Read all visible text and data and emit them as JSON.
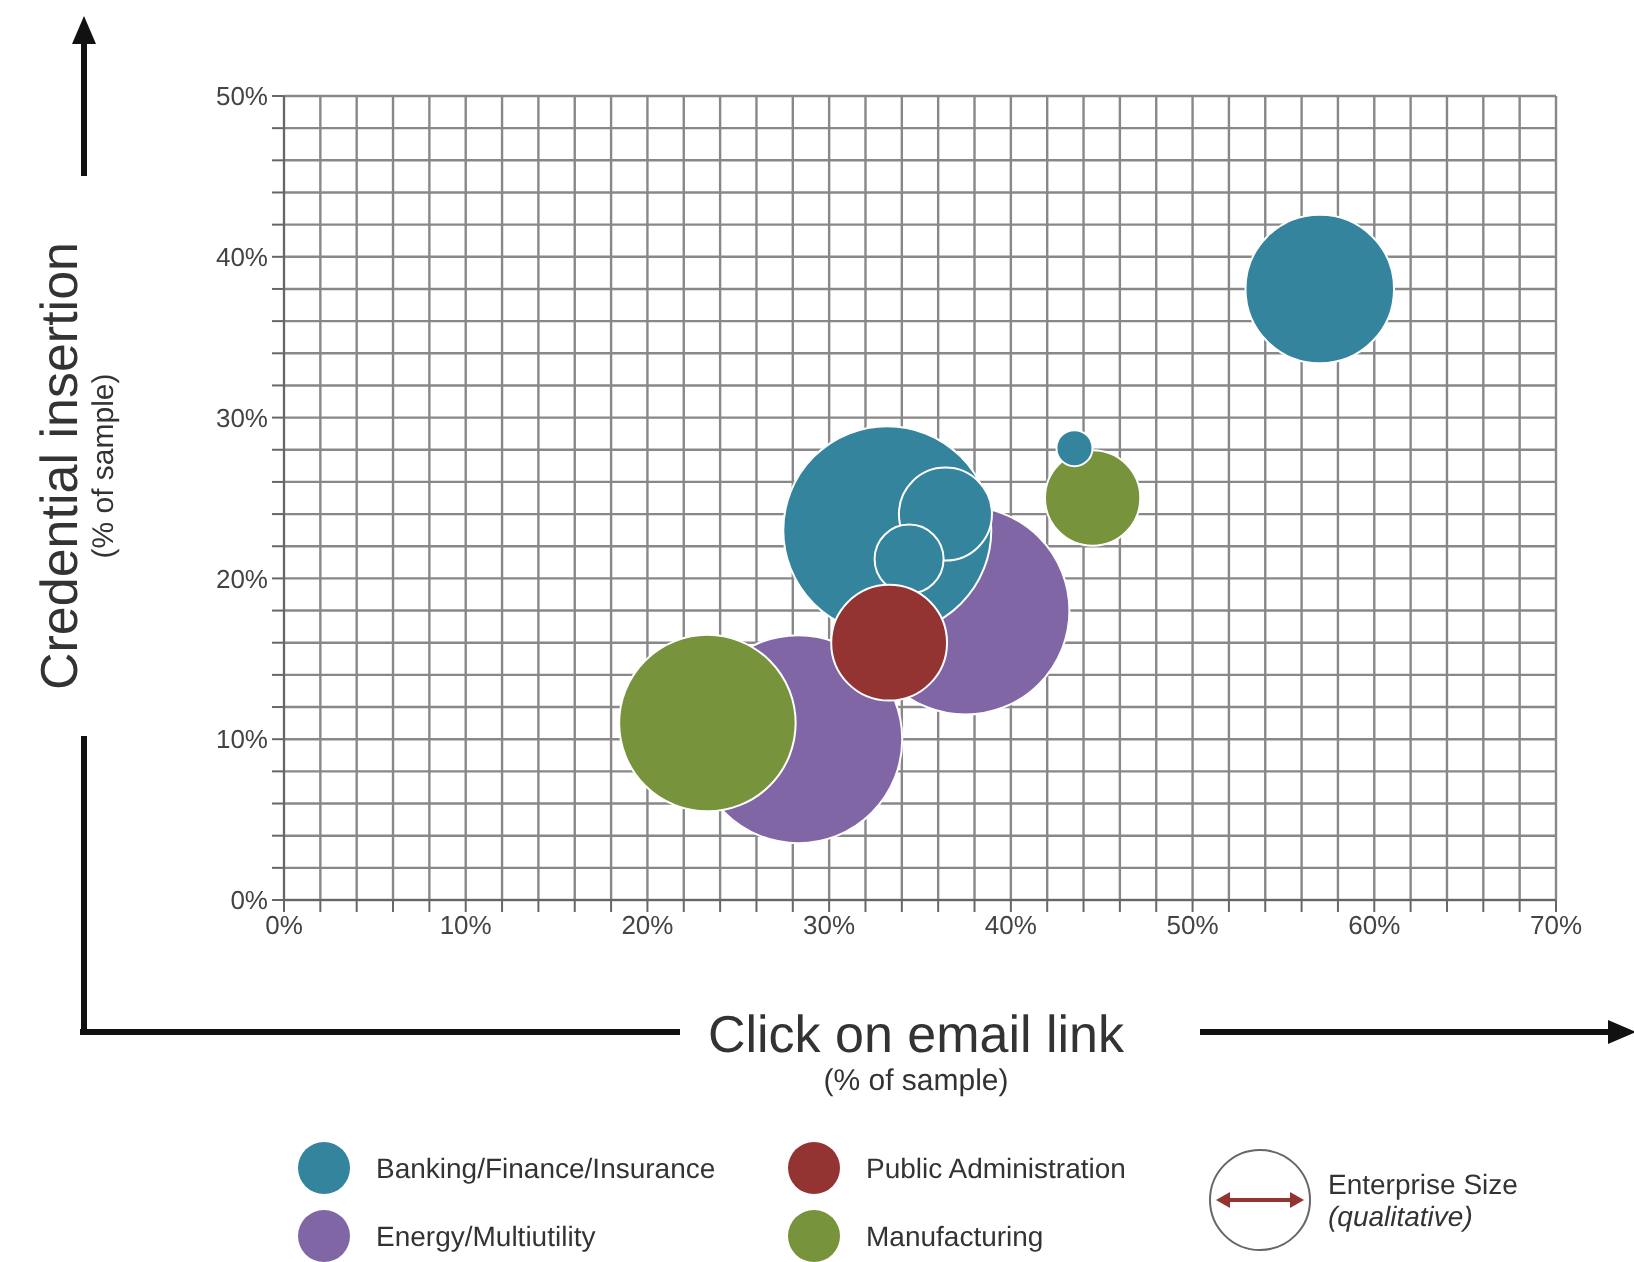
{
  "chart_data": {
    "type": "bubble",
    "xlabel": "Click on email link\n(% of sample)",
    "ylabel": "Credential insertion\n(% of sample)",
    "xlim": [
      0,
      70
    ],
    "ylim": [
      0,
      50
    ],
    "xticks": [
      {
        "value": 0,
        "label": "0%"
      },
      {
        "value": 2,
        "label": null
      },
      {
        "value": 4,
        "label": null
      },
      {
        "value": 6,
        "label": null
      },
      {
        "value": 8,
        "label": null
      },
      {
        "value": 10,
        "label": "10%"
      },
      {
        "value": 12,
        "label": null
      },
      {
        "value": 14,
        "label": null
      },
      {
        "value": 16,
        "label": null
      },
      {
        "value": 18,
        "label": null
      },
      {
        "value": 20,
        "label": "20%"
      },
      {
        "value": 22,
        "label": null
      },
      {
        "value": 24,
        "label": null
      },
      {
        "value": 26,
        "label": null
      },
      {
        "value": 28,
        "label": null
      },
      {
        "value": 30,
        "label": "30%"
      },
      {
        "value": 32,
        "label": null
      },
      {
        "value": 34,
        "label": null
      },
      {
        "value": 36,
        "label": null
      },
      {
        "value": 38,
        "label": null
      },
      {
        "value": 40,
        "label": "40%"
      },
      {
        "value": 42,
        "label": null
      },
      {
        "value": 44,
        "label": null
      },
      {
        "value": 46,
        "label": null
      },
      {
        "value": 48,
        "label": null
      },
      {
        "value": 50,
        "label": "50%"
      },
      {
        "value": 52,
        "label": null
      },
      {
        "value": 54,
        "label": null
      },
      {
        "value": 56,
        "label": null
      },
      {
        "value": 58,
        "label": null
      },
      {
        "value": 60,
        "label": "60%"
      },
      {
        "value": 62,
        "label": null
      },
      {
        "value": 64,
        "label": null
      },
      {
        "value": 66,
        "label": null
      },
      {
        "value": 68,
        "label": null
      },
      {
        "value": 70,
        "label": "70%"
      }
    ],
    "yticks": [
      {
        "value": 0,
        "label": "0%"
      },
      {
        "value": 2,
        "label": null
      },
      {
        "value": 4,
        "label": null
      },
      {
        "value": 6,
        "label": null
      },
      {
        "value": 8,
        "label": null
      },
      {
        "value": 10,
        "label": "10%"
      },
      {
        "value": 12,
        "label": null
      },
      {
        "value": 14,
        "label": null
      },
      {
        "value": 16,
        "label": null
      },
      {
        "value": 18,
        "label": null
      },
      {
        "value": 20,
        "label": "20%"
      },
      {
        "value": 22,
        "label": null
      },
      {
        "value": 24,
        "label": null
      },
      {
        "value": 26,
        "label": null
      },
      {
        "value": 28,
        "label": null
      },
      {
        "value": 30,
        "label": "30%"
      },
      {
        "value": 32,
        "label": null
      },
      {
        "value": 34,
        "label": null
      },
      {
        "value": 36,
        "label": null
      },
      {
        "value": 38,
        "label": null
      },
      {
        "value": 40,
        "label": "40%"
      },
      {
        "value": 42,
        "label": null
      },
      {
        "value": 44,
        "label": null
      },
      {
        "value": 46,
        "label": null
      },
      {
        "value": 48,
        "label": null
      },
      {
        "value": 50,
        "label": "50%"
      }
    ],
    "grid": true,
    "legend": "bottom",
    "annotations": [
      "Enterprise Size",
      "(qualitative)"
    ],
    "series": [
      {
        "name": "Energy/Multiutility",
        "color": "#8066a4",
        "x": [
          28.3,
          37.5
        ],
        "values": [
          10,
          18
        ],
        "sizes": [
          1,
          1
        ]
      },
      {
        "name": "Manufacturing",
        "color": "#77933c",
        "x": [
          23.3,
          44.5
        ],
        "values": [
          11,
          25
        ],
        "sizes": [
          0.72,
          0.21
        ]
      },
      {
        "name": "Banking/Finance/Insurance",
        "color": "#33849c",
        "x": [
          57,
          33.2,
          36.4,
          34.4,
          43.5
        ],
        "values": [
          38,
          23,
          24,
          21.2,
          28.1
        ],
        "sizes": [
          0.51,
          1,
          0.2,
          0.11,
          0.03
        ]
      },
      {
        "name": "Public Administration",
        "color": "#933433",
        "x": [
          33.3
        ],
        "values": [
          16
        ],
        "sizes": [
          0.31
        ]
      }
    ]
  }
}
